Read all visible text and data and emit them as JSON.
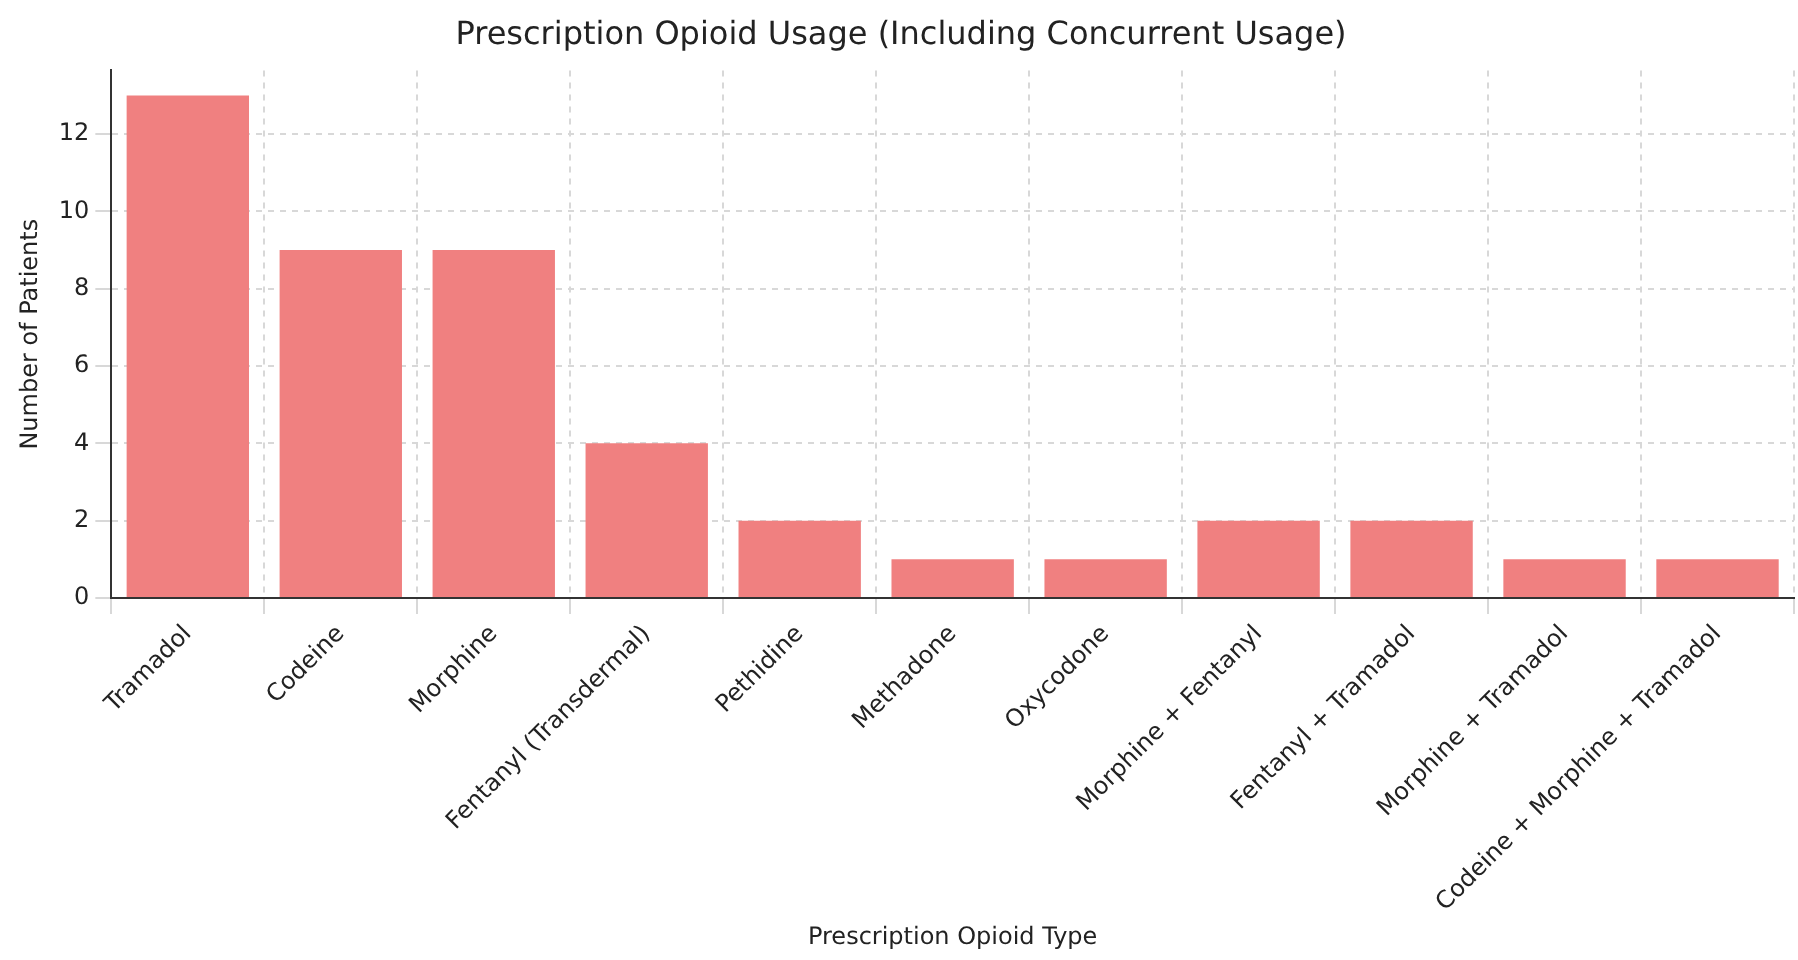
{
  "chart_data": {
    "type": "bar",
    "title": "Prescription Opioid Usage (Including Concurrent Usage)",
    "xlabel": "Prescription Opioid Type",
    "ylabel": "Number of Patients",
    "categories": [
      "Tramadol",
      "Codeine",
      "Morphine",
      "Fentanyl (Transdermal)",
      "Pethidine",
      "Methadone",
      "Oxycodone",
      "Morphine + Fentanyl",
      "Fentanyl + Tramadol",
      "Morphine + Tramadol",
      "Codeine + Morphine + Tramadol"
    ],
    "values": [
      13,
      9,
      9,
      4,
      2,
      1,
      1,
      2,
      2,
      1,
      1
    ],
    "color": "#f08080",
    "ylim": [
      0,
      13.65
    ],
    "yticks": [
      0,
      2,
      4,
      6,
      8,
      10,
      12
    ],
    "grid": true
  }
}
